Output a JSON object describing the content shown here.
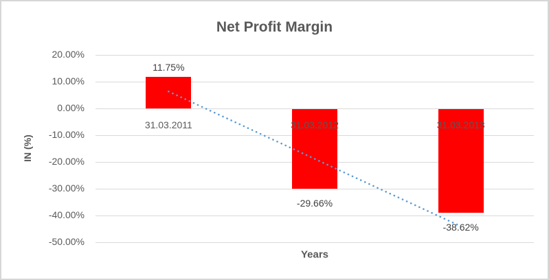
{
  "frame": {
    "background": "#ffffff",
    "border_color": "#d6d6d6"
  },
  "chart_data": {
    "type": "bar",
    "title": "Net Profit Margin",
    "xlabel": "Years",
    "ylabel": "IN (%)",
    "categories": [
      "31.03.2011",
      "31.03.2012",
      "31.03.2013"
    ],
    "values": [
      11.75,
      -29.66,
      -38.62
    ],
    "data_labels": [
      "11.75%",
      "-29.66%",
      "-38.62%"
    ],
    "ylim": [
      -50,
      20
    ],
    "yticks": [
      {
        "value": 20,
        "label": "20.00%"
      },
      {
        "value": 10,
        "label": "10.00%"
      },
      {
        "value": 0,
        "label": "0.00%"
      },
      {
        "value": -10,
        "label": "-10.00%"
      },
      {
        "value": -20,
        "label": "-20.00%"
      },
      {
        "value": -30,
        "label": "-30.00%"
      },
      {
        "value": -40,
        "label": "-40.00%"
      },
      {
        "value": -50,
        "label": "-50.00%"
      }
    ],
    "grid": true,
    "legend": "none",
    "bar_color": "#ff0000",
    "data_label_color": "#404040",
    "axis_text_color": "#595959",
    "gridline_color": "#d9d9d9",
    "trendline": {
      "type": "linear",
      "style": "dotted",
      "color": "#5b9bd5",
      "start_category_index": 0,
      "end_category_index": 2,
      "start_value": 6.34,
      "end_value": -44.03
    }
  }
}
